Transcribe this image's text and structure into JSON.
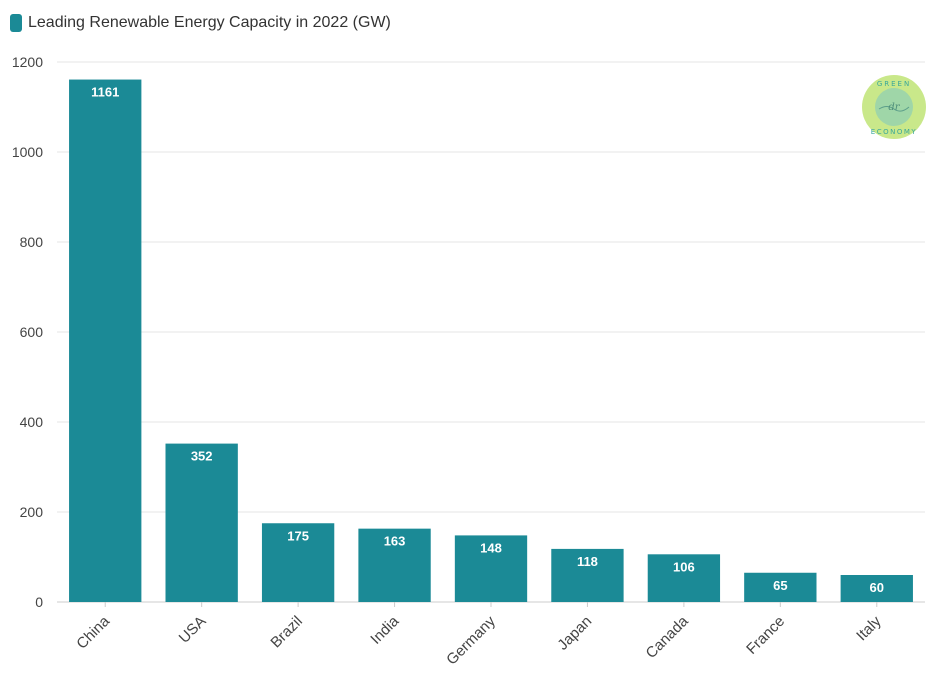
{
  "colors": {
    "bar": "#1b8a96",
    "grid": "#e6e6e6",
    "axis": "#cccccc",
    "logo_fill": "#c9e88a",
    "logo_text": "#3aa79a"
  },
  "legend": {
    "label": "Leading Renewable Energy Capacity in 2022 (GW)"
  },
  "logo": {
    "icon": "green-economy-logo",
    "text": "GREEN ECONOMY"
  },
  "chart_data": {
    "type": "bar",
    "title": "",
    "xlabel": "",
    "ylabel": "",
    "categories": [
      "China",
      "USA",
      "Brazil",
      "India",
      "Germany",
      "Japan",
      "Canada",
      "France",
      "Italy"
    ],
    "series": [
      {
        "name": "Leading Renewable Energy Capacity in 2022 (GW)",
        "values": [
          1161,
          352,
          175,
          163,
          148,
          118,
          106,
          65,
          60
        ]
      }
    ],
    "ylim": [
      0,
      1200
    ],
    "yticks": [
      0,
      200,
      400,
      600,
      800,
      1000,
      1200
    ],
    "grid": true,
    "legend_position": "top-left",
    "data_labels": true
  }
}
